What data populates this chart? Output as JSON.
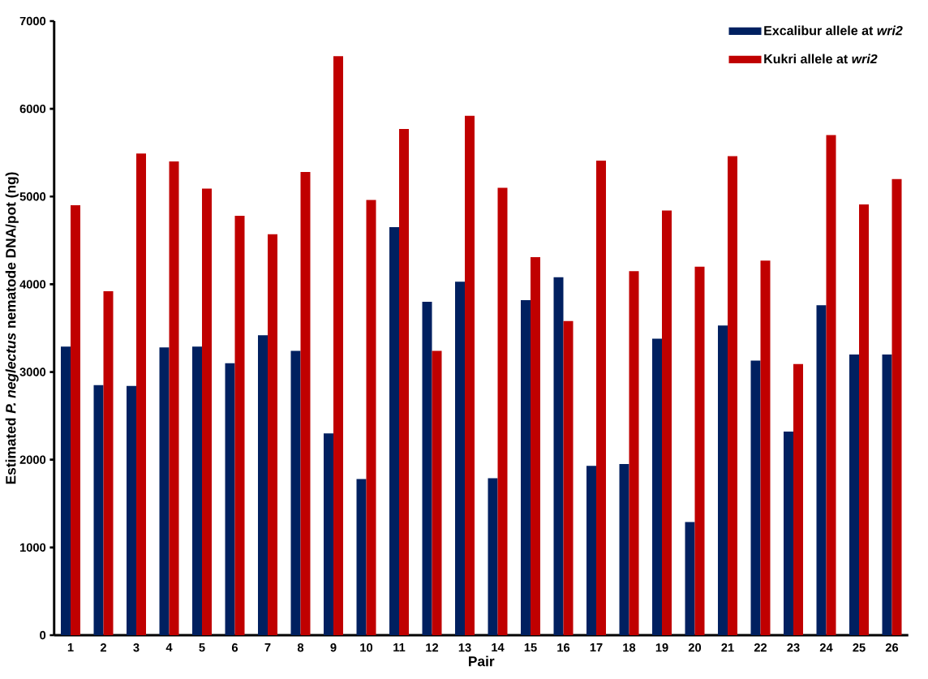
{
  "chart_data": {
    "type": "bar",
    "xlabel": "Pair",
    "ylabel": "Estimated *P. neglectus* nematode DNA/pot (ng)",
    "categories": [
      "1",
      "2",
      "3",
      "4",
      "5",
      "6",
      "7",
      "8",
      "9",
      "10",
      "11",
      "12",
      "13",
      "14",
      "15",
      "16",
      "17",
      "18",
      "19",
      "20",
      "21",
      "22",
      "23",
      "24",
      "25",
      "26"
    ],
    "series": [
      {
        "name": "Excalibur allele at *wri2*",
        "color": "#002060",
        "values": [
          3290,
          2850,
          2840,
          3280,
          3290,
          3100,
          3420,
          3240,
          2300,
          1780,
          4650,
          3800,
          4030,
          1790,
          3820,
          4080,
          1930,
          1950,
          3380,
          1290,
          3530,
          3130,
          2320,
          3760,
          3200,
          3200
        ]
      },
      {
        "name": "Kukri allele at *wri2*",
        "color": "#c00000",
        "values": [
          4900,
          3920,
          5490,
          5400,
          5090,
          4780,
          4570,
          5280,
          6600,
          4960,
          5770,
          3240,
          5920,
          5100,
          4310,
          3580,
          5410,
          4150,
          4840,
          4200,
          5460,
          4270,
          3090,
          5700,
          4910,
          5200
        ]
      }
    ],
    "ylim": [
      0,
      7000
    ],
    "yticks": [
      0,
      1000,
      2000,
      3000,
      4000,
      5000,
      6000,
      7000
    ],
    "legend": "top right",
    "grid": false
  }
}
